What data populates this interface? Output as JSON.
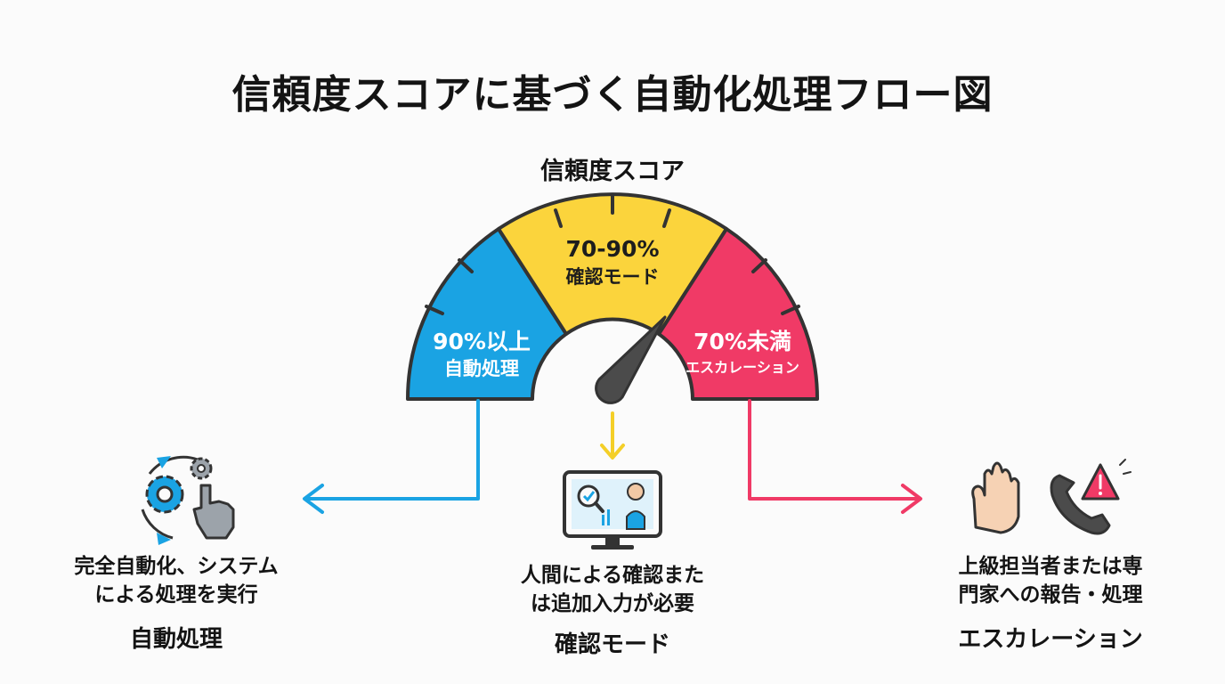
{
  "title": "信頼度スコアに基づく自動化処理フロー図",
  "gauge": {
    "title": "信頼度スコア",
    "segments": [
      {
        "range": "90%以上",
        "mode": "自動処理",
        "color": "#1aa3e3"
      },
      {
        "range": "70-90%",
        "mode": "確認モード",
        "color": "#fbd43c"
      },
      {
        "range": "70%未満",
        "mode": "エスカレーション",
        "color": "#f03a66"
      }
    ]
  },
  "outcomes": [
    {
      "heading": "自動処理",
      "description": "完全自動化、システム\nによる処理を実行",
      "icon": "automation-gears-hand-icon",
      "color": "#1aa3e3"
    },
    {
      "heading": "確認モード",
      "description": "人間による確認また\nは追加入力が必要",
      "icon": "monitor-human-review-icon",
      "color": "#f4cf28"
    },
    {
      "heading": "エスカレーション",
      "description": "上級担当者または専\n門家への報告・処理",
      "icon": "hand-stop-and-phone-alert-icon",
      "color": "#f03a66"
    }
  ]
}
